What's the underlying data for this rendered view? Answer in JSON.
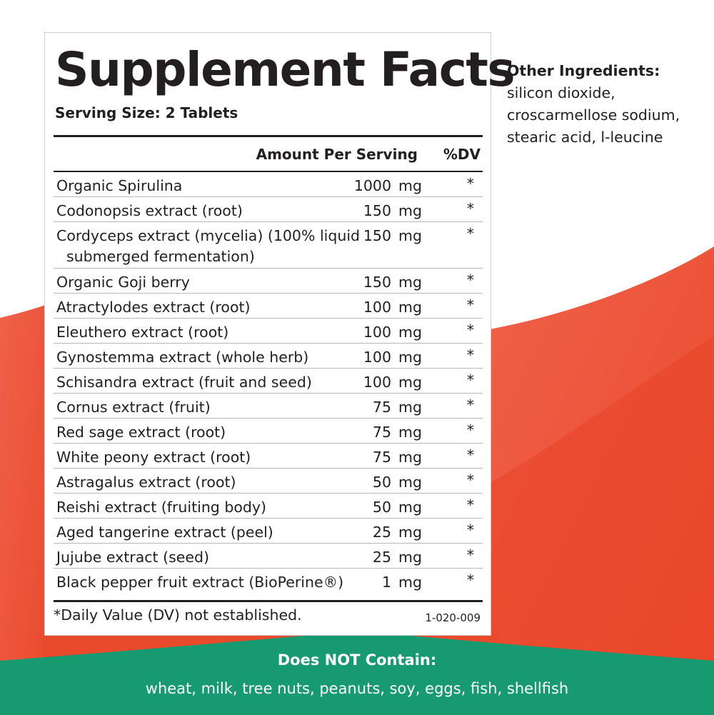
{
  "panel": {
    "title": "Supplement Facts",
    "serving_size": "Serving Size: 2 Tablets",
    "header_amount": "Amount Per Serving",
    "header_dv": "%DV",
    "rows": [
      {
        "name": "Organic Spirulina",
        "amount": "1000",
        "unit": "mg",
        "dv": "*"
      },
      {
        "name": "Codonopsis extract (root)",
        "amount": "150",
        "unit": "mg",
        "dv": "*"
      },
      {
        "name": "Cordyceps extract (mycelia) (100% liquid",
        "name_cont": "submerged fermentation)",
        "amount": "150",
        "unit": "mg",
        "dv": "*"
      },
      {
        "name": "Organic Goji berry",
        "amount": "150",
        "unit": "mg",
        "dv": "*"
      },
      {
        "name": "Atractylodes extract (root)",
        "amount": "100",
        "unit": "mg",
        "dv": "*"
      },
      {
        "name": "Eleuthero extract (root)",
        "amount": "100",
        "unit": "mg",
        "dv": "*"
      },
      {
        "name": "Gynostemma extract (whole herb)",
        "amount": "100",
        "unit": "mg",
        "dv": "*"
      },
      {
        "name": "Schisandra extract (fruit and seed)",
        "amount": "100",
        "unit": "mg",
        "dv": "*"
      },
      {
        "name": "Cornus extract (fruit)",
        "amount": "75",
        "unit": "mg",
        "dv": "*"
      },
      {
        "name": "Red sage extract (root)",
        "amount": "75",
        "unit": "mg",
        "dv": "*"
      },
      {
        "name": "White peony extract (root)",
        "amount": "75",
        "unit": "mg",
        "dv": "*"
      },
      {
        "name": "Astragalus extract (root)",
        "amount": "50",
        "unit": "mg",
        "dv": "*"
      },
      {
        "name": "Reishi extract (fruiting body)",
        "amount": "50",
        "unit": "mg",
        "dv": "*"
      },
      {
        "name": "Aged tangerine extract (peel)",
        "amount": "25",
        "unit": "mg",
        "dv": "*"
      },
      {
        "name": "Jujube extract (seed)",
        "amount": "25",
        "unit": "mg",
        "dv": "*"
      },
      {
        "name": "Black pepper fruit extract (BioPerine®)",
        "amount": "1",
        "unit": "mg",
        "dv": "*"
      }
    ],
    "footnote": "*Daily Value (DV) not established.",
    "code": "1-020-009"
  },
  "other_ingredients": {
    "heading": "Other Ingredients:",
    "lines": [
      "silicon dioxide,",
      "croscarmellose sodium,",
      "stearic acid, l-leucine"
    ]
  },
  "does_not_contain": {
    "heading": "Does NOT Contain:",
    "list": "wheat, milk, tree nuts, peanuts, soy, eggs, fish, shellfish"
  },
  "colors": {
    "red_light": "#ef5b42",
    "red_dark": "#ea4a2c",
    "green": "#179a6f",
    "text": "#231f20"
  }
}
